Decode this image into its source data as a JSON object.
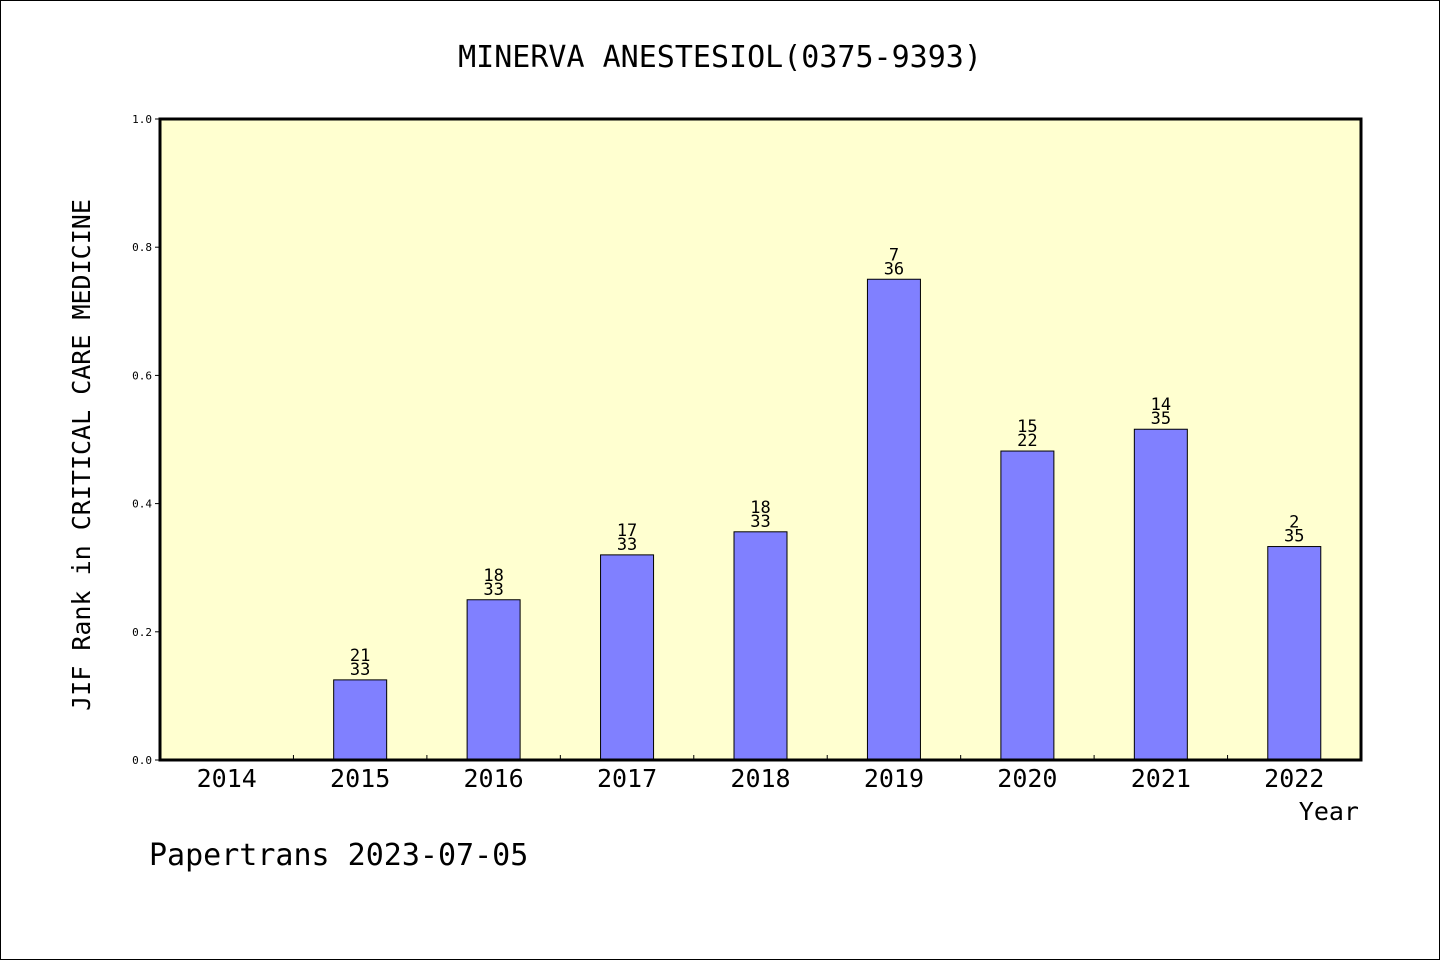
{
  "chart_data": {
    "type": "bar",
    "title": "MINERVA ANESTESIOL(0375-9393)",
    "xlabel": "Year",
    "ylabel": "JIF Rank in CRITICAL CARE MEDICINE",
    "categories": [
      "2014",
      "2015",
      "2016",
      "2017",
      "2018",
      "2019",
      "2020",
      "2021",
      "2022"
    ],
    "values": [
      null,
      0.125,
      0.25,
      0.32,
      0.356,
      0.75,
      0.482,
      0.516,
      0.333
    ],
    "rank_labels": [
      null,
      {
        "rank": "21",
        "total": "33"
      },
      {
        "rank": "18",
        "total": "33"
      },
      {
        "rank": "17",
        "total": "33"
      },
      {
        "rank": "18",
        "total": "33"
      },
      {
        "rank": "7",
        "total": "36"
      },
      {
        "rank": "15",
        "total": "22"
      },
      {
        "rank": "14",
        "total": "35"
      },
      {
        "rank": "2",
        "total": "35"
      }
    ],
    "ylim": [
      0,
      1.0
    ],
    "yticks": [
      "0.0",
      "0.2",
      "0.4",
      "0.6",
      "0.8",
      "1.0"
    ],
    "grid": false,
    "colors": {
      "plot_background": "#FFFFD0",
      "bar_fill": "#8080FF",
      "bar_stroke": "#000000"
    }
  },
  "footer": {
    "credit": "Papertrans 2023-07-05"
  }
}
